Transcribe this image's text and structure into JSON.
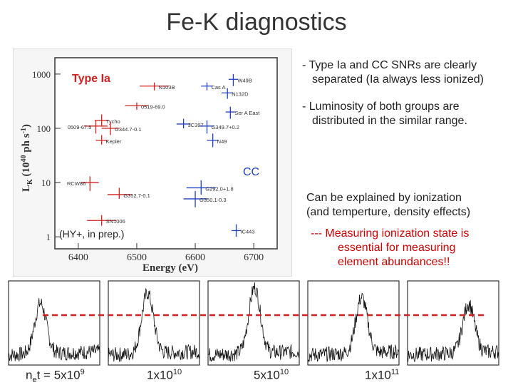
{
  "slide": {
    "title": "Fe-K diagnostics",
    "bullets": [
      {
        "line1": "- Type Ia and CC SNRs are clearly",
        "line2": "separated (Ia always less ionized)"
      },
      {
        "line1": "- Luminosity of both groups are",
        "line2": "distributed in the similar range."
      }
    ],
    "explain_line1": "Can be explained by ionization",
    "explain_line2": "(and temperture, density effects)",
    "measure_line1": "---  Measuring ionization state is",
    "measure_line2": "essential for measuring",
    "measure_line3": "element abundances!!"
  },
  "plot": {
    "label_ia": "Type Ia",
    "label_cc": "CC",
    "label_ref": "(HY+, in prep.)",
    "xlabel": "Energy (eV)",
    "ylabel_main": "L",
    "ylabel_sub": "K",
    "ylabel_rest": " (10",
    "ylabel_exp": "40",
    "ylabel_end": " ph s",
    "ylabel_exp2": "-1",
    "ylabel_close": ")",
    "xticks": [
      "6400",
      "6500",
      "6600",
      "6700"
    ],
    "yticks": [
      "1",
      "10",
      "100",
      "1000"
    ],
    "ia_color": "#d02020",
    "cc_color": "#2040c0",
    "ia_points": [
      {
        "name": "N103B",
        "e": 6530,
        "l": 600,
        "ex": 25,
        "ly": [
          500,
          700
        ]
      },
      {
        "name": "0519-69.0",
        "e": 6500,
        "l": 260,
        "ex": 20,
        "ly": [
          220,
          300
        ]
      },
      {
        "name": "Tycho",
        "e": 6440,
        "l": 140,
        "ex": 12,
        "ly": [
          110,
          180
        ]
      },
      {
        "name": "0509-67.5",
        "e": 6430,
        "l": 110,
        "ex": 20,
        "ly": [
          80,
          140
        ]
      },
      {
        "name": "G344.7-0.1",
        "e": 6455,
        "l": 100,
        "ex": 15,
        "ly": [
          75,
          130
        ]
      },
      {
        "name": "Kepler",
        "e": 6440,
        "l": 60,
        "ex": 10,
        "ly": [
          50,
          75
        ]
      },
      {
        "name": "RCW86",
        "e": 6420,
        "l": 10,
        "ex": 15,
        "ly": [
          7,
          13
        ]
      },
      {
        "name": "G352.7-0.1",
        "e": 6470,
        "l": 6,
        "ex": 20,
        "ly": [
          5,
          8
        ]
      },
      {
        "name": "SN1006",
        "e": 6440,
        "l": 2,
        "ex": 25,
        "ly": [
          1.6,
          2.5
        ]
      }
    ],
    "cc_points": [
      {
        "name": "W49B",
        "e": 6665,
        "l": 800,
        "ex": 8,
        "ly": [
          600,
          1000
        ]
      },
      {
        "name": "Cas A",
        "e": 6620,
        "l": 600,
        "ex": 10,
        "ly": [
          500,
          700
        ]
      },
      {
        "name": "N132D",
        "e": 6655,
        "l": 450,
        "ex": 10,
        "ly": [
          350,
          550
        ]
      },
      {
        "name": "Ser A East",
        "e": 6660,
        "l": 200,
        "ex": 8,
        "ly": [
          150,
          250
        ]
      },
      {
        "name": "3C397",
        "e": 6580,
        "l": 120,
        "ex": 12,
        "ly": [
          100,
          150
        ]
      },
      {
        "name": "G349.7+0.2",
        "e": 6620,
        "l": 110,
        "ex": 12,
        "ly": [
          80,
          140
        ]
      },
      {
        "name": "N49",
        "e": 6630,
        "l": 60,
        "ex": 10,
        "ly": [
          45,
          80
        ]
      },
      {
        "name": "G292.0+1.8",
        "e": 6610,
        "l": 8,
        "ex": 25,
        "ly": [
          6,
          11
        ]
      },
      {
        "name": "G350.1-0.3",
        "e": 6600,
        "l": 5,
        "ex": 20,
        "ly": [
          3.5,
          7
        ]
      },
      {
        "name": "IC443",
        "e": 6670,
        "l": 1.3,
        "ex": 8,
        "ly": [
          1,
          1.7
        ]
      }
    ]
  },
  "spectra": {
    "labels": [
      {
        "main": "n",
        "sub": "e",
        "rest": "t = 5x10",
        "sup": "9"
      },
      {
        "main": "1x10",
        "sup": "10"
      },
      {
        "main": "5x10",
        "sup": "10"
      },
      {
        "main": "1x10",
        "sup": "11"
      }
    ],
    "peaks": [
      0.6,
      0.72,
      0.78,
      0.66,
      0.58
    ]
  }
}
